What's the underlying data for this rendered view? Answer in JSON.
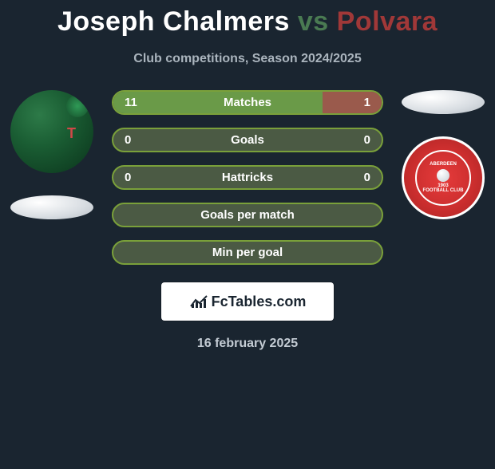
{
  "header": {
    "player1": "Joseph Chalmers",
    "vs": "vs",
    "player2": "Polvara",
    "subtitle": "Club competitions, Season 2024/2025"
  },
  "colors": {
    "background": "#1a2530",
    "player1_accent": "#4a7a52",
    "player2_accent": "#a03838",
    "bar_neutral_fill": "#4b5a44",
    "bar_left_fill": "#5a8a4a",
    "bar_right_fill": "#8a4a4a",
    "bar_border_shared": "#7aa03a",
    "text_light": "#ffffff",
    "muted": "#aab4bd"
  },
  "stats": [
    {
      "label": "Matches",
      "left_value": "11",
      "right_value": "1",
      "left_pct": 78,
      "right_pct": 22,
      "left_fill": "#6a9a48",
      "right_fill": "#9a5a4c",
      "border": "#7aa03a"
    },
    {
      "label": "Goals",
      "left_value": "0",
      "right_value": "0",
      "left_pct": 0,
      "right_pct": 0,
      "left_fill": "#4b5a44",
      "right_fill": "#4b5a44",
      "border": "#7aa03a"
    },
    {
      "label": "Hattricks",
      "left_value": "0",
      "right_value": "0",
      "left_pct": 0,
      "right_pct": 0,
      "left_fill": "#4b5a44",
      "right_fill": "#4b5a44",
      "border": "#7aa03a"
    },
    {
      "label": "Goals per match",
      "left_value": "",
      "right_value": "",
      "left_pct": 0,
      "right_pct": 0,
      "left_fill": "#4b5a44",
      "right_fill": "#4b5a44",
      "border": "#7aa03a"
    },
    {
      "label": "Min per goal",
      "left_value": "",
      "right_value": "",
      "left_pct": 0,
      "right_pct": 0,
      "left_fill": "#4b5a44",
      "right_fill": "#4b5a44",
      "border": "#7aa03a"
    }
  ],
  "branding": {
    "text": "FcTables.com"
  },
  "date": "16 february 2025",
  "crest_right": {
    "top_text": "ABERDEEN",
    "year": "1903",
    "bottom_text": "FOOTBALL CLUB"
  }
}
